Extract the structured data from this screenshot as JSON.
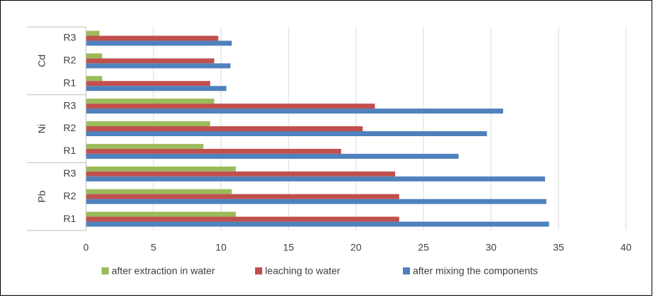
{
  "chart_data": {
    "type": "bar",
    "orientation": "horizontal",
    "groups": [
      {
        "label": "Pb",
        "categories": [
          "R1",
          "R2",
          "R3"
        ]
      },
      {
        "label": "Ni",
        "categories": [
          "R1",
          "R2",
          "R3"
        ]
      },
      {
        "label": "Cd",
        "categories": [
          "R1",
          "R2",
          "R3"
        ]
      }
    ],
    "series": [
      {
        "name": "after extraction in water",
        "color": "#9bbb59",
        "values": [
          11.1,
          10.8,
          11.1,
          8.7,
          9.2,
          9.5,
          1.2,
          1.2,
          1.0
        ]
      },
      {
        "name": "leaching to water",
        "color": "#c0504d",
        "values": [
          23.2,
          23.2,
          22.9,
          18.9,
          20.5,
          21.4,
          9.2,
          9.5,
          9.8
        ]
      },
      {
        "name": "after mixing the components",
        "color": "#4f81bd",
        "values": [
          34.3,
          34.1,
          34.0,
          27.6,
          29.7,
          30.9,
          10.4,
          10.7,
          10.8
        ]
      }
    ],
    "xlim": [
      0,
      40
    ],
    "xticks": [
      0,
      5,
      10,
      15,
      20,
      25,
      30,
      35,
      40
    ],
    "grid": true,
    "legend": "bottom"
  }
}
